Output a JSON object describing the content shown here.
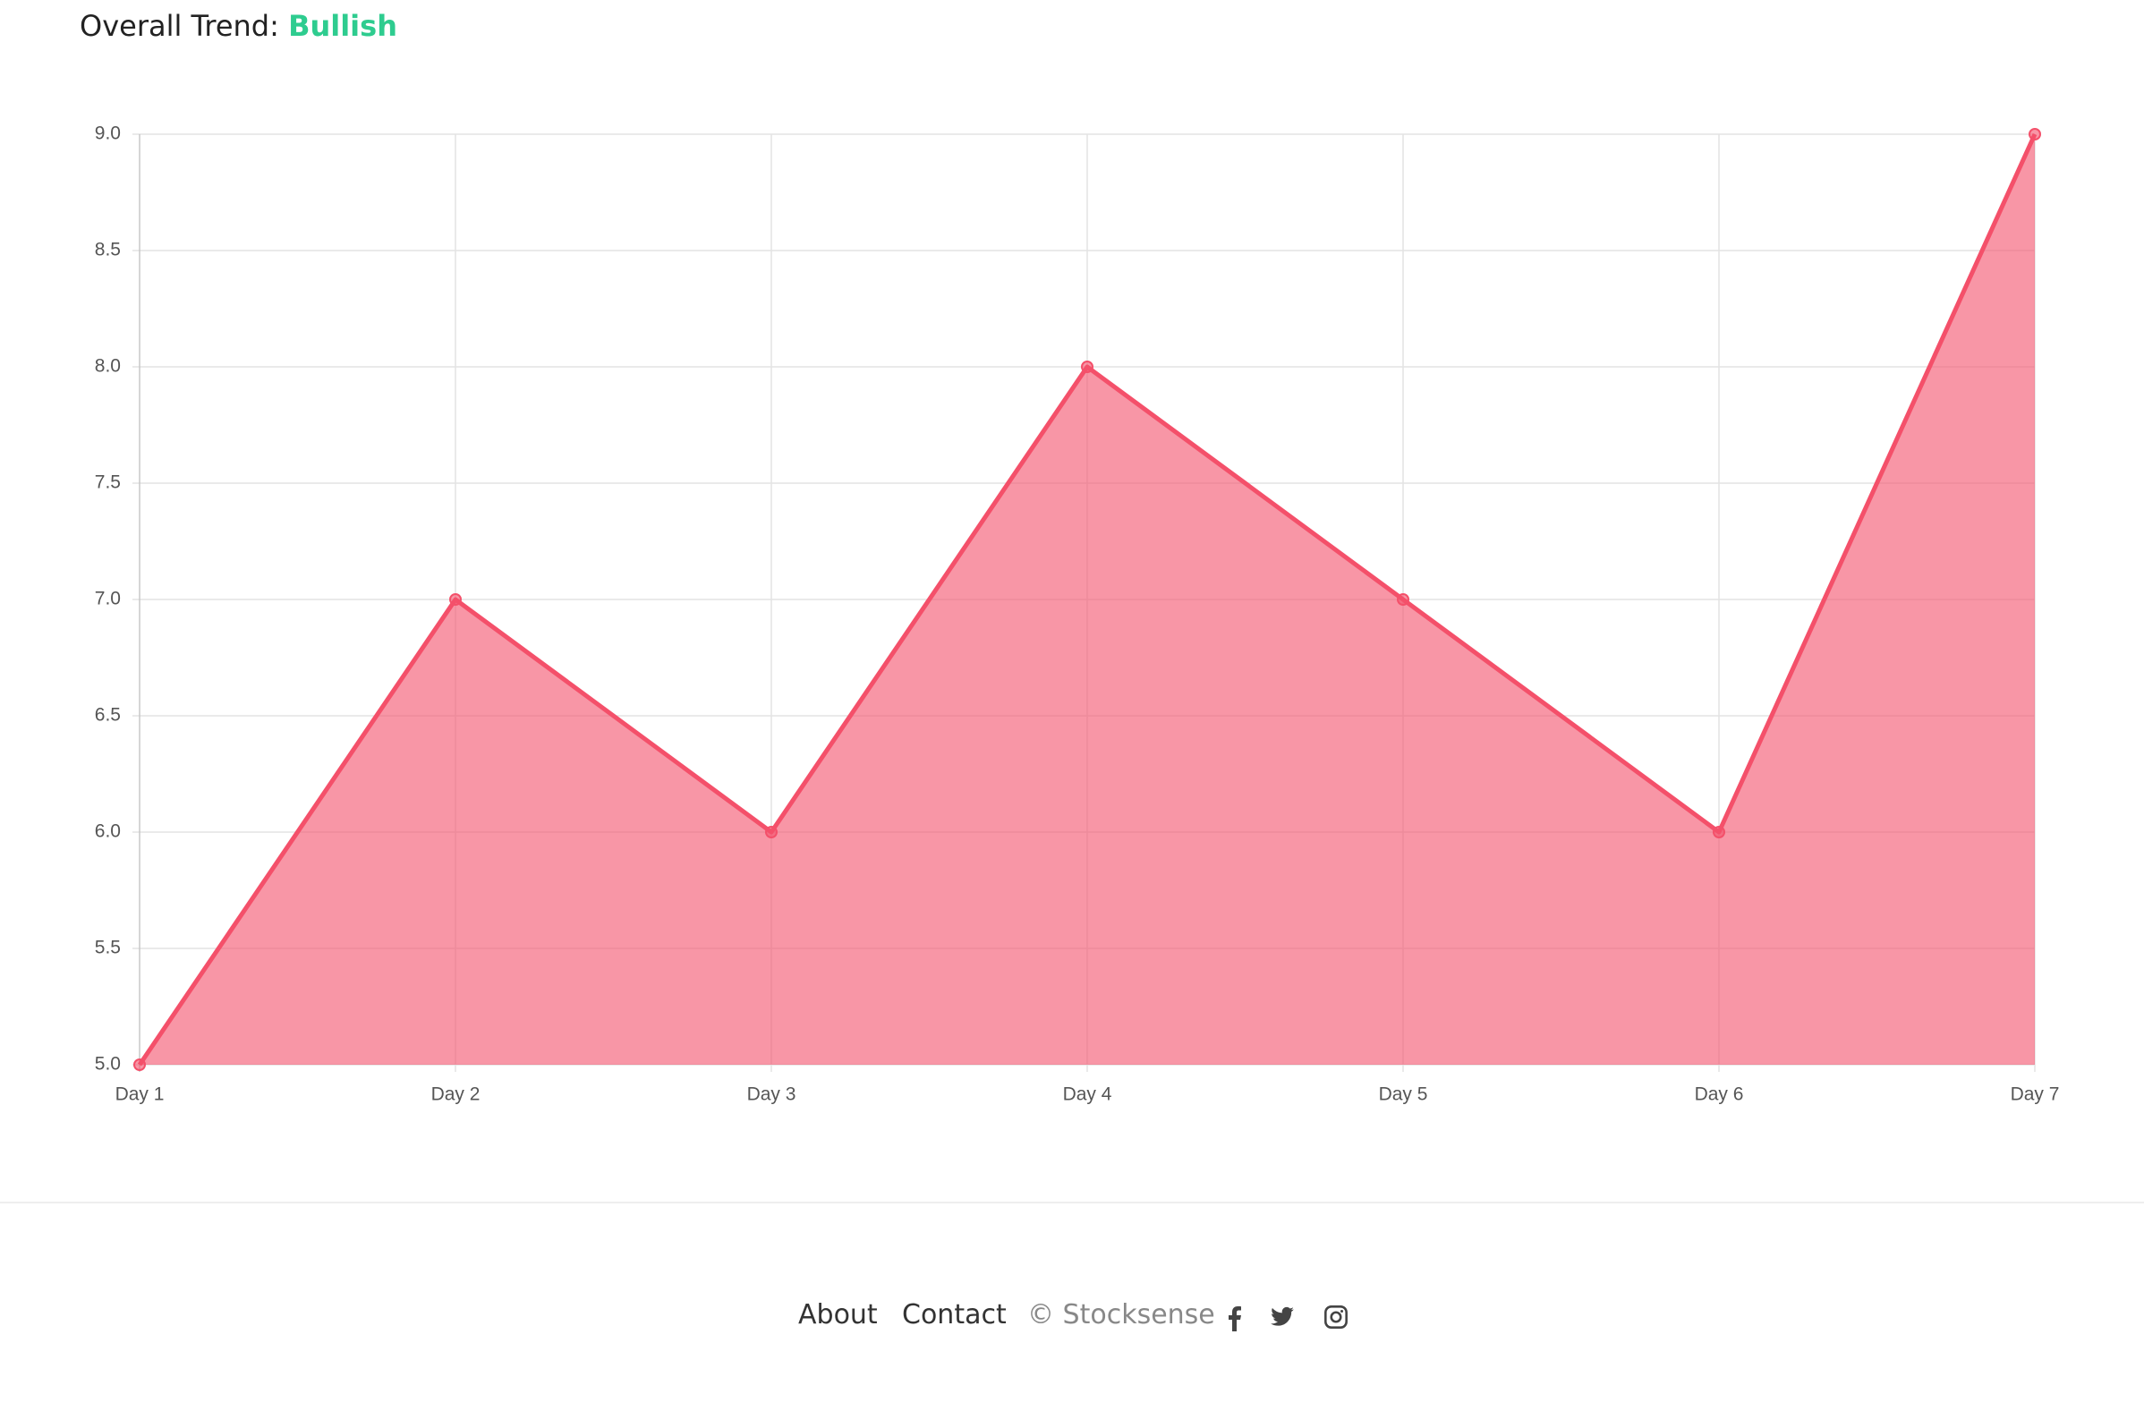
{
  "header": {
    "label": "Overall Trend:",
    "trend": "Bullish"
  },
  "chart_data": {
    "type": "area",
    "categories": [
      "Day 1",
      "Day 2",
      "Day 3",
      "Day 4",
      "Day 5",
      "Day 6",
      "Day 7"
    ],
    "values": [
      5,
      7,
      6,
      8,
      7,
      6,
      9
    ],
    "color": "#f4506a",
    "ylim": [
      5,
      9
    ],
    "yticks": [
      {
        "value": 5,
        "label": "5.0"
      },
      5.5,
      {
        "value": 6,
        "label": "6.0"
      },
      6.5,
      {
        "value": 7,
        "label": "7.0"
      },
      7.5,
      {
        "value": 8,
        "label": "8.0"
      },
      8.5,
      {
        "value": 9,
        "label": "9.0"
      }
    ],
    "grid": true
  },
  "footer": {
    "links": [
      "About",
      "Contact"
    ],
    "copyright": "© Stocksense"
  }
}
